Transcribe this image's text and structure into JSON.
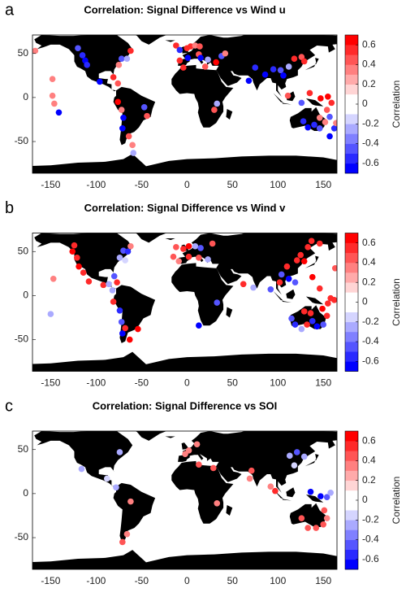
{
  "chart_data": [
    {
      "type": "scatter",
      "panel_label": "a",
      "title": "Correlation: Signal Difference vs Wind u",
      "x": [
        -167,
        -148,
        -148,
        -146,
        -141,
        -120,
        -115,
        -112,
        -110,
        -96,
        -81,
        -76,
        -75,
        -72,
        -66,
        -62,
        -76,
        -72,
        -70,
        -71,
        -64,
        -60,
        -59,
        -44,
        -47,
        -12,
        -8,
        0,
        4,
        9,
        14,
        13,
        -8,
        -4,
        1,
        15,
        23,
        32,
        20,
        33,
        30,
        38,
        42,
        75,
        68,
        86,
        95,
        103,
        106,
        112,
        118,
        126,
        129,
        111,
        126,
        135,
        147,
        155,
        159,
        154,
        128,
        133,
        140,
        146,
        152,
        146,
        157,
        162,
        157,
        164
      ],
      "y": [
        53,
        21,
        2,
        -7,
        -17,
        56,
        48,
        42,
        37,
        18,
        23,
        16,
        37,
        44,
        44,
        53,
        -5,
        -14,
        -23,
        -35,
        -44,
        -54,
        -63,
        -21,
        -11,
        59,
        54,
        56,
        58,
        59,
        58,
        49,
        42,
        34,
        45,
        45,
        43,
        40,
        35,
        -7,
        -14,
        47,
        50,
        34,
        19,
        26,
        32,
        31,
        25,
        35,
        44,
        46,
        41,
        2,
        -6,
        5,
        -1,
        1,
        -6,
        -14,
        -27,
        -34,
        -31,
        -35,
        -28,
        -23,
        -22,
        -35,
        -44,
        -29
      ],
      "values": [
        0.3,
        0.3,
        0.3,
        0.3,
        -0.6,
        -0.4,
        -0.5,
        -0.6,
        -0.5,
        -0.7,
        0.5,
        0.4,
        0.3,
        -0.4,
        -0.3,
        0.5,
        0.7,
        0.3,
        -0.6,
        -0.7,
        0.4,
        0.3,
        -0.3,
        0.4,
        -0.4,
        0.6,
        -0.5,
        0.5,
        0.6,
        0.3,
        0.4,
        0.4,
        0.6,
        0.5,
        -0.7,
        -0.6,
        -0.3,
        0.7,
        0.4,
        -0.3,
        0.4,
        -0.4,
        0.3,
        -0.5,
        -0.6,
        -0.7,
        -0.5,
        -0.4,
        -0.6,
        -0.3,
        0.5,
        0.4,
        0.5,
        0.4,
        -0.4,
        0.5,
        0.7,
        0.7,
        0.6,
        0.4,
        -0.5,
        -0.6,
        -0.5,
        -0.4,
        0.3,
        0.3,
        -0.4,
        -0.5,
        -0.6,
        0.3
      ],
      "xlim": [
        -170,
        165
      ],
      "ylim": [
        -86,
        71
      ],
      "xticks": [
        -150,
        -100,
        -50,
        0,
        50,
        100,
        150
      ],
      "yticks": [
        -50,
        0,
        50
      ],
      "colorbar": {
        "label": "Correlation",
        "lim": [
          -0.7,
          0.7
        ],
        "ticks": [
          -0.6,
          -0.4,
          -0.2,
          0,
          0.2,
          0.4,
          0.6
        ],
        "colors": [
          "#0000ff",
          "#2a2aff",
          "#5555ff",
          "#8080ff",
          "#aaaaff",
          "#d5d5ff",
          "#ffffff",
          "#ffffff",
          "#ffd5d5",
          "#ffaaaa",
          "#ff8080",
          "#ff5555",
          "#ff2a2a",
          "#ff0000"
        ]
      }
    },
    {
      "type": "scatter",
      "panel_label": "b",
      "title": "Correlation: Signal Difference vs Wind v",
      "x": [
        -147,
        -150,
        -126,
        -121,
        -119,
        -124,
        -114,
        -108,
        -92,
        -86,
        -80,
        -77,
        -82,
        -74,
        -70,
        -65,
        -62,
        -68,
        -81,
        -74,
        -72,
        -71,
        -63,
        -68,
        -54,
        -12,
        -4,
        2,
        9,
        15,
        -15,
        -9,
        2,
        13,
        23,
        28,
        13,
        33,
        62,
        73,
        92,
        102,
        104,
        110,
        121,
        125,
        129,
        133,
        137,
        146,
        112,
        119,
        138,
        146,
        158,
        162,
        155,
        115,
        119,
        126,
        132,
        138,
        143,
        150,
        154,
        149,
        136,
        129,
        163
      ],
      "y": [
        19,
        -21,
        50,
        43,
        33,
        57,
        26,
        16,
        12,
        13,
        22,
        15,
        6,
        43,
        51,
        50,
        56,
        40,
        -7,
        -17,
        -30,
        -43,
        -50,
        -37,
        -38,
        55,
        53,
        56,
        56,
        54,
        44,
        39,
        44,
        43,
        41,
        59,
        -34,
        -8,
        13,
        9,
        7,
        15,
        24,
        33,
        40,
        46,
        39,
        55,
        62,
        59,
        19,
        15,
        21,
        8,
        -3,
        -5,
        -9,
        -26,
        -33,
        -38,
        -33,
        -29,
        -35,
        -33,
        -23,
        -15,
        -20,
        -18,
        31
      ],
      "values": [
        0.3,
        -0.3,
        0.7,
        0.6,
        0.7,
        0.6,
        0.6,
        0.6,
        0.5,
        -0.3,
        -0.4,
        0.6,
        -0.3,
        -0.3,
        -0.4,
        -0.5,
        0.3,
        -0.2,
        0.5,
        -0.5,
        -0.4,
        -0.6,
        0.7,
        0.6,
        0.7,
        0.4,
        0.6,
        0.7,
        -0.3,
        -0.4,
        0.4,
        0.3,
        0.5,
        0.4,
        -0.3,
        0.4,
        -0.6,
        -0.4,
        0.5,
        -0.3,
        -0.4,
        0.6,
        -0.4,
        0.6,
        0.6,
        0.5,
        0.7,
        0.5,
        0.6,
        0.5,
        -0.6,
        -0.4,
        0.7,
        0.6,
        0.6,
        0.6,
        0.5,
        -0.4,
        -0.5,
        -0.3,
        0.6,
        -0.5,
        -0.6,
        -0.4,
        0.6,
        0.7,
        0.5,
        0.5,
        0.4
      ],
      "xlim": [
        -170,
        165
      ],
      "ylim": [
        -86,
        71
      ],
      "xticks": [
        -150,
        -100,
        -50,
        0,
        50,
        100,
        150
      ],
      "yticks": [
        -50,
        0,
        50
      ],
      "colorbar": {
        "label": "Correlation",
        "lim": [
          -0.7,
          0.7
        ],
        "ticks": [
          -0.6,
          -0.4,
          -0.2,
          0,
          0.2,
          0.4,
          0.6
        ],
        "colors": [
          "#0000ff",
          "#2a2aff",
          "#5555ff",
          "#8080ff",
          "#aaaaff",
          "#d5d5ff",
          "#ffffff",
          "#ffffff",
          "#ffd5d5",
          "#ffaaaa",
          "#ff8080",
          "#ff5555",
          "#ff2a2a",
          "#ff0000"
        ]
      }
    },
    {
      "type": "scatter",
      "panel_label": "c",
      "title": "Correlation: Signal Difference vs SOI",
      "x": [
        -116,
        -74,
        -78,
        -88,
        -62,
        -66,
        -71,
        -2,
        2,
        11,
        13,
        29,
        33,
        69,
        71,
        92,
        97,
        113,
        121,
        129,
        118,
        136,
        147,
        154,
        158,
        126,
        133,
        142,
        150,
        154,
        151
      ],
      "y": [
        28,
        47,
        7,
        17,
        -9,
        -46,
        -55,
        45,
        49,
        56,
        33,
        29,
        -11,
        17,
        26,
        8,
        3,
        43,
        47,
        42,
        32,
        2,
        -3,
        -4,
        1,
        -28,
        -39,
        -39,
        -35,
        -28,
        -19
      ],
      "values": [
        -0.3,
        -0.3,
        -0.3,
        -0.2,
        0.3,
        0.3,
        0.4,
        0.3,
        0.3,
        0.3,
        0.4,
        0.4,
        0.3,
        0.3,
        0.4,
        0.3,
        0.6,
        -0.3,
        -0.4,
        -0.3,
        -0.2,
        -0.7,
        -0.6,
        -0.4,
        -0.3,
        0.4,
        0.4,
        0.4,
        0.4,
        0.3,
        0.4
      ],
      "xlim": [
        -170,
        165
      ],
      "ylim": [
        -86,
        71
      ],
      "xticks": [
        -150,
        -100,
        -50,
        0,
        50,
        100,
        150
      ],
      "yticks": [
        -50,
        0,
        50
      ],
      "colorbar": {
        "label": "Correlation",
        "lim": [
          -0.7,
          0.7
        ],
        "ticks": [
          -0.6,
          -0.4,
          -0.2,
          0,
          0.2,
          0.4,
          0.6
        ],
        "colors": [
          "#0000ff",
          "#2a2aff",
          "#5555ff",
          "#8080ff",
          "#aaaaff",
          "#d5d5ff",
          "#ffffff",
          "#ffffff",
          "#ffd5d5",
          "#ffaaaa",
          "#ff8080",
          "#ff5555",
          "#ff2a2a",
          "#ff0000"
        ]
      }
    }
  ]
}
